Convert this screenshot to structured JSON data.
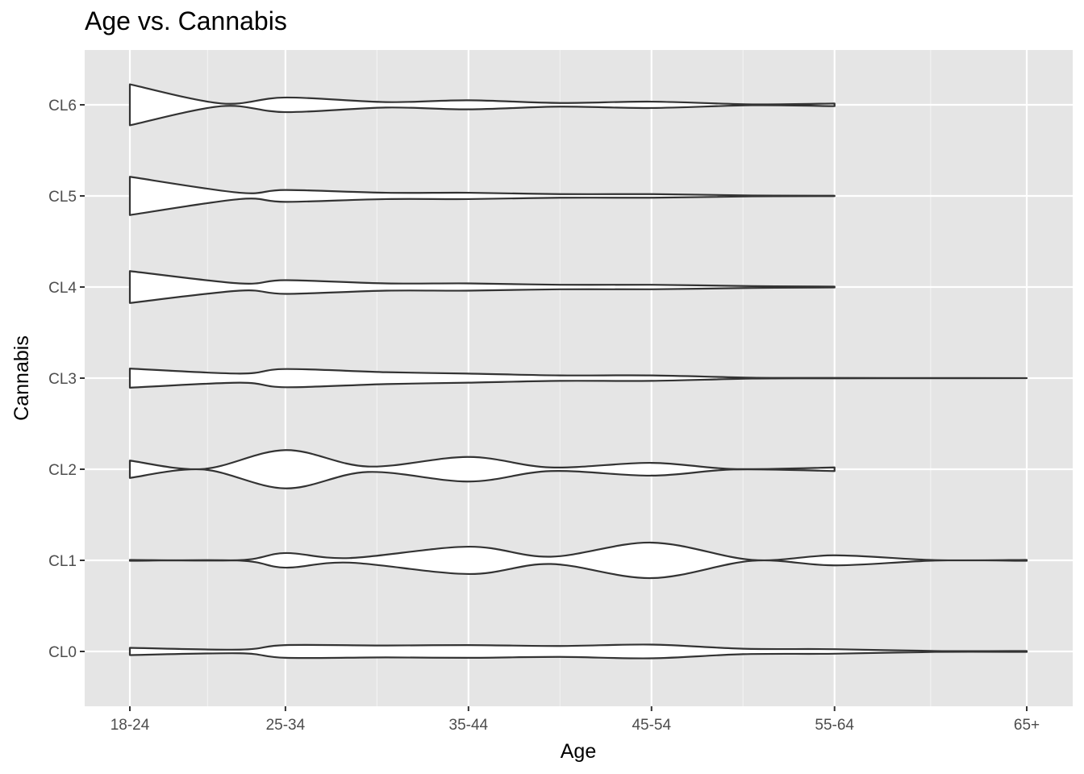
{
  "chart_data": {
    "type": "violin",
    "title": "Age vs. Cannabis",
    "xlabel": "Age",
    "ylabel": "Cannabis",
    "x_categories": [
      "18-24",
      "25-34",
      "35-44",
      "45-54",
      "55-64",
      "65+"
    ],
    "y_categories": [
      "CL0",
      "CL1",
      "CL2",
      "CL3",
      "CL4",
      "CL5",
      "CL6"
    ],
    "x_scale": "numeric (age midpoints)",
    "x_values": [
      21,
      29.5,
      39.5,
      49.5,
      59.5,
      70
    ],
    "grid": true,
    "legend": "none",
    "colors": {
      "panel_background": "#e5e5e5",
      "grid": "#ffffff",
      "violin_fill": "#ffffff",
      "violin_outline": "#333333"
    },
    "violins": [
      {
        "category": "CL0",
        "x_max": 70,
        "half_width": [
          [
            21,
            0.08
          ],
          [
            27,
            0.04
          ],
          [
            29.5,
            0.14
          ],
          [
            35,
            0.13
          ],
          [
            39.5,
            0.14
          ],
          [
            44.5,
            0.12
          ],
          [
            49.5,
            0.15
          ],
          [
            54.5,
            0.06
          ],
          [
            59.5,
            0.05
          ],
          [
            65,
            0.01
          ],
          [
            70,
            0.01
          ]
        ]
      },
      {
        "category": "CL1",
        "x_max": 70,
        "half_width": [
          [
            21,
            0.01
          ],
          [
            27,
            0.005
          ],
          [
            29.5,
            0.16
          ],
          [
            33,
            0.05
          ],
          [
            39.5,
            0.3
          ],
          [
            44,
            0.08
          ],
          [
            49.5,
            0.39
          ],
          [
            55,
            0.01
          ],
          [
            59.5,
            0.11
          ],
          [
            65,
            0.005
          ],
          [
            70,
            0.01
          ]
        ]
      },
      {
        "category": "CL2",
        "x_max": 59.5,
        "half_width": [
          [
            21,
            0.19
          ],
          [
            25,
            0.005
          ],
          [
            29.5,
            0.42
          ],
          [
            34,
            0.06
          ],
          [
            39.5,
            0.27
          ],
          [
            44,
            0.04
          ],
          [
            49.5,
            0.14
          ],
          [
            54,
            0.005
          ],
          [
            59.5,
            0.04
          ]
        ]
      },
      {
        "category": "CL3",
        "x_max": 70,
        "half_width": [
          [
            21,
            0.21
          ],
          [
            27,
            0.1
          ],
          [
            29.5,
            0.2
          ],
          [
            35,
            0.13
          ],
          [
            39.5,
            0.1
          ],
          [
            44.5,
            0.06
          ],
          [
            49.5,
            0.06
          ],
          [
            55,
            0.01
          ],
          [
            59.5,
            0.005
          ],
          [
            65,
            0.003
          ],
          [
            70,
            0.001
          ]
        ]
      },
      {
        "category": "CL4",
        "x_max": 59.5,
        "half_width": [
          [
            21,
            0.35
          ],
          [
            27,
            0.08
          ],
          [
            29.5,
            0.15
          ],
          [
            35,
            0.08
          ],
          [
            39.5,
            0.08
          ],
          [
            44.5,
            0.05
          ],
          [
            49.5,
            0.05
          ],
          [
            55,
            0.02
          ],
          [
            59.5,
            0.01
          ]
        ]
      },
      {
        "category": "CL5",
        "x_max": 59.5,
        "half_width": [
          [
            21,
            0.42
          ],
          [
            27,
            0.07
          ],
          [
            29.5,
            0.13
          ],
          [
            35,
            0.07
          ],
          [
            39.5,
            0.07
          ],
          [
            44.5,
            0.04
          ],
          [
            49.5,
            0.04
          ],
          [
            55,
            0.01
          ],
          [
            59.5,
            0.005
          ]
        ]
      },
      {
        "category": "CL6",
        "x_max": 59.5,
        "half_width": [
          [
            21,
            0.45
          ],
          [
            26,
            0.03
          ],
          [
            29.5,
            0.16
          ],
          [
            35,
            0.06
          ],
          [
            39.5,
            0.1
          ],
          [
            44.5,
            0.04
          ],
          [
            49.5,
            0.07
          ],
          [
            55,
            0.01
          ],
          [
            59.5,
            0.03
          ]
        ]
      }
    ]
  }
}
